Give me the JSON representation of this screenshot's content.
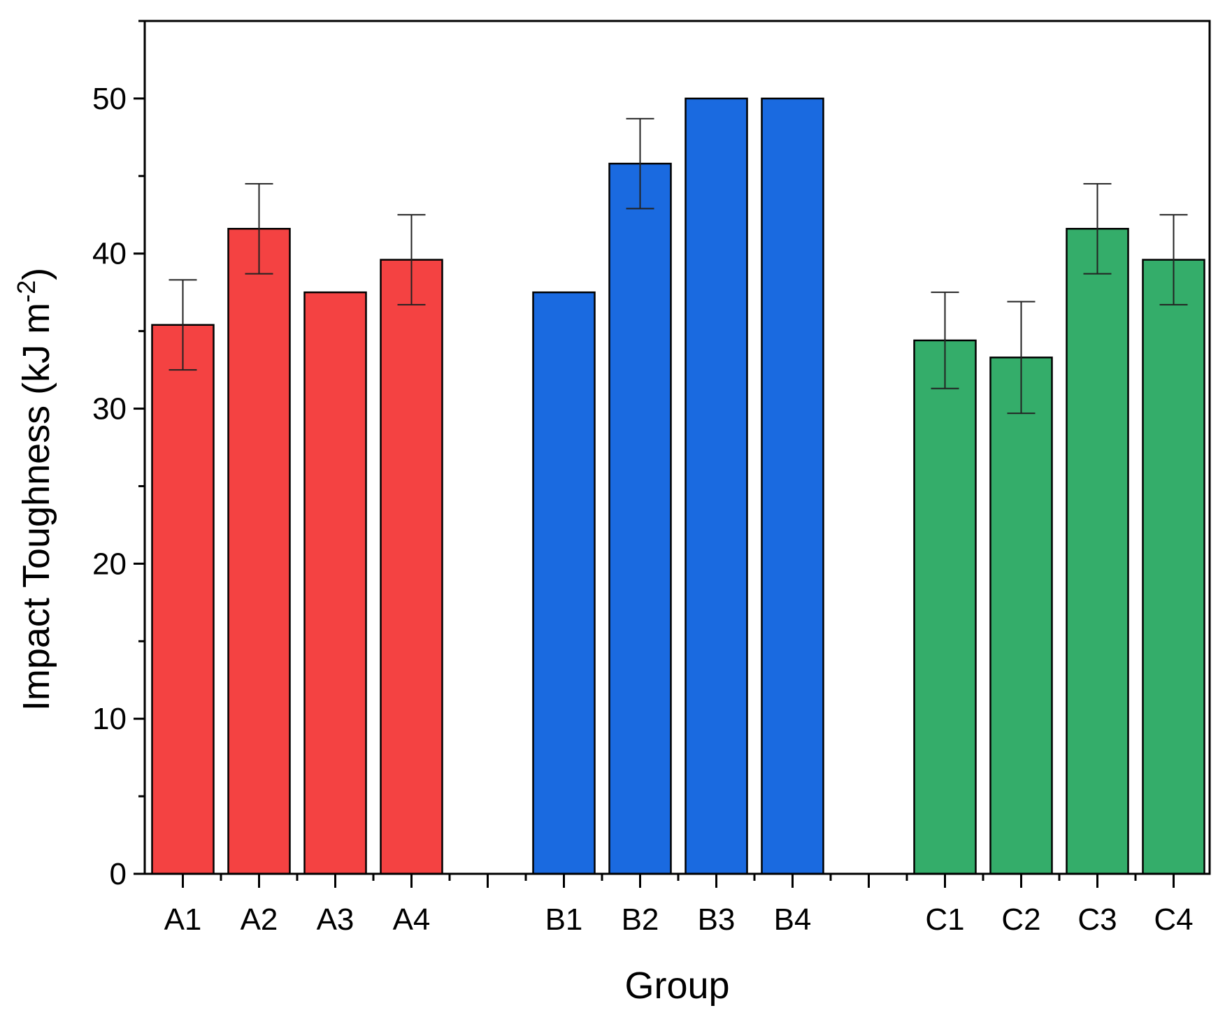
{
  "chart_data": {
    "type": "bar",
    "title": "",
    "xlabel": "Group",
    "ylabel_main": "Impact Toughness (kJ m",
    "ylabel_sup": "-2",
    "ylabel_close": ")",
    "ylim": [
      0,
      55
    ],
    "yticks": [
      0,
      10,
      20,
      30,
      40,
      50
    ],
    "ytick_labels": [
      "0",
      "10",
      "20",
      "30",
      "40",
      "50"
    ],
    "y_minor_step": 5,
    "categories": [
      "A1",
      "A2",
      "A3",
      "A4",
      "",
      "B1",
      "B2",
      "B3",
      "B4",
      "",
      "C1",
      "C2",
      "C3",
      "C4"
    ],
    "groups": [
      {
        "name": "A",
        "color": "#f44242",
        "bars": [
          {
            "label": "A1",
            "value": 35.4,
            "error": 2.9
          },
          {
            "label": "A2",
            "value": 41.6,
            "error": 2.9
          },
          {
            "label": "A3",
            "value": 37.5,
            "error": 0
          },
          {
            "label": "A4",
            "value": 39.6,
            "error": 2.9
          }
        ]
      },
      {
        "name": "B",
        "color": "#1a6ae0",
        "bars": [
          {
            "label": "B1",
            "value": 37.5,
            "error": 0
          },
          {
            "label": "B2",
            "value": 45.8,
            "error": 2.9
          },
          {
            "label": "B3",
            "value": 50.0,
            "error": 0
          },
          {
            "label": "B4",
            "value": 50.0,
            "error": 0
          }
        ]
      },
      {
        "name": "C",
        "color": "#34ad6a",
        "bars": [
          {
            "label": "C1",
            "value": 34.4,
            "error": 3.1
          },
          {
            "label": "C2",
            "value": 33.3,
            "error": 3.6
          },
          {
            "label": "C3",
            "value": 41.6,
            "error": 2.9
          },
          {
            "label": "C4",
            "value": 39.6,
            "error": 2.9
          }
        ]
      }
    ],
    "grid": false,
    "legend": "none"
  }
}
